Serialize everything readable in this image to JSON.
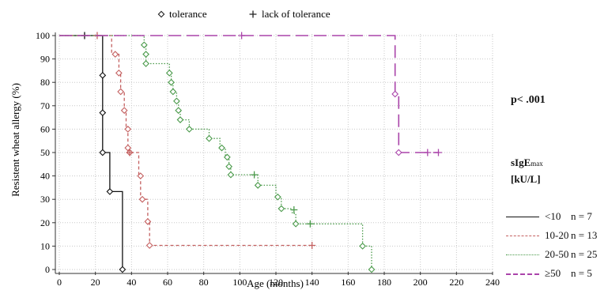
{
  "chart_data": {
    "type": "line",
    "subtype": "kaplan-meier-step",
    "title": "",
    "xlabel": "Age (months)",
    "ylabel": "Resistent wheat allergy (%)",
    "xlim": [
      0,
      240
    ],
    "ylim": [
      0,
      100
    ],
    "xticks": [
      "0",
      "20",
      "40",
      "60",
      "80",
      "100",
      "120",
      "140",
      "160",
      "180",
      "200",
      "220",
      "240"
    ],
    "yticks": [
      "0",
      "10",
      "20",
      "30",
      "40",
      "50",
      "60",
      "70",
      "80",
      "90",
      "100"
    ],
    "grid": true,
    "legend": {
      "position": "top",
      "entries": [
        {
          "marker": "diamond",
          "label": "tolerance"
        },
        {
          "marker": "plus",
          "label": "lack of tolerance"
        }
      ]
    },
    "annotation": "p< .001",
    "group_legend_title": "sIgE",
    "group_legend_title_sub": "max",
    "group_legend_unit": "[kU/L]",
    "series": [
      {
        "name": "<10",
        "n_label": "n = 7",
        "color": "#111111",
        "dash": "solid",
        "steps": [
          [
            0,
            100
          ],
          [
            24,
            100
          ],
          [
            24,
            83
          ],
          [
            24,
            67
          ],
          [
            24,
            50
          ],
          [
            28,
            50
          ],
          [
            28,
            33.3
          ],
          [
            35,
            33.3
          ],
          [
            35,
            0
          ]
        ],
        "tolerance": [
          [
            24,
            83
          ],
          [
            24,
            67
          ],
          [
            24,
            50
          ],
          [
            28,
            33.3
          ],
          [
            35,
            0
          ]
        ],
        "censored": [
          [
            14,
            100
          ]
        ]
      },
      {
        "name": "10-20",
        "n_label": "n = 13",
        "color": "#c46060",
        "dash": "dashed",
        "steps": [
          [
            0,
            100
          ],
          [
            29,
            100
          ],
          [
            29,
            92
          ],
          [
            33,
            92
          ],
          [
            33,
            84
          ],
          [
            34,
            84
          ],
          [
            34,
            76
          ],
          [
            36,
            76
          ],
          [
            36,
            68
          ],
          [
            37,
            68
          ],
          [
            37,
            60
          ],
          [
            38,
            60
          ],
          [
            38,
            52
          ],
          [
            38,
            50
          ],
          [
            44,
            50
          ],
          [
            44,
            40
          ],
          [
            45,
            40
          ],
          [
            45,
            30
          ],
          [
            49,
            30
          ],
          [
            49,
            20.5
          ],
          [
            50,
            20.5
          ],
          [
            50,
            10.3
          ],
          [
            140,
            10.3
          ]
        ],
        "tolerance": [
          [
            31,
            92
          ],
          [
            33,
            84
          ],
          [
            34,
            76
          ],
          [
            36,
            68
          ],
          [
            38,
            60
          ],
          [
            38,
            52
          ],
          [
            39,
            50
          ],
          [
            45,
            40
          ],
          [
            46,
            30
          ],
          [
            49,
            20.5
          ],
          [
            50,
            10.3
          ]
        ],
        "censored": [
          [
            21,
            100
          ],
          [
            39,
            50
          ],
          [
            140,
            10.3
          ]
        ]
      },
      {
        "name": "20-50",
        "n_label": "n = 25",
        "color": "#4a9a4a",
        "dash": "dotted",
        "steps": [
          [
            0,
            100
          ],
          [
            47,
            100
          ],
          [
            47,
            96
          ],
          [
            48,
            96
          ],
          [
            48,
            92
          ],
          [
            48,
            88
          ],
          [
            61,
            88
          ],
          [
            61,
            84
          ],
          [
            62,
            84
          ],
          [
            62,
            80
          ],
          [
            63,
            80
          ],
          [
            63,
            76
          ],
          [
            65,
            76
          ],
          [
            65,
            72
          ],
          [
            66,
            72
          ],
          [
            66,
            68
          ],
          [
            67,
            68
          ],
          [
            67,
            64
          ],
          [
            72,
            64
          ],
          [
            72,
            60
          ],
          [
            83,
            60
          ],
          [
            83,
            56
          ],
          [
            89,
            56
          ],
          [
            89,
            52
          ],
          [
            92,
            52
          ],
          [
            92,
            48
          ],
          [
            94,
            48
          ],
          [
            94,
            44
          ],
          [
            95,
            44
          ],
          [
            95,
            40.5
          ],
          [
            110,
            40.5
          ],
          [
            110,
            36
          ],
          [
            120,
            36
          ],
          [
            120,
            31
          ],
          [
            123,
            31
          ],
          [
            123,
            26
          ],
          [
            129,
            26
          ],
          [
            129,
            24
          ],
          [
            131,
            24
          ],
          [
            131,
            19.5
          ],
          [
            168,
            19.5
          ],
          [
            168,
            10
          ],
          [
            173,
            10
          ],
          [
            173,
            0
          ]
        ],
        "tolerance": [
          [
            47,
            96
          ],
          [
            48,
            92
          ],
          [
            48,
            88
          ],
          [
            61,
            84
          ],
          [
            62,
            80
          ],
          [
            63,
            76
          ],
          [
            65,
            72
          ],
          [
            66,
            68
          ],
          [
            67,
            64
          ],
          [
            72,
            60
          ],
          [
            83,
            56
          ],
          [
            90,
            52
          ],
          [
            93,
            48
          ],
          [
            94,
            44
          ],
          [
            95,
            40.5
          ],
          [
            110,
            36
          ],
          [
            121,
            31
          ],
          [
            123,
            26
          ],
          [
            131,
            19.5
          ],
          [
            168,
            10
          ],
          [
            173,
            0
          ]
        ],
        "censored": [
          [
            108,
            40.5
          ],
          [
            130,
            25.5
          ],
          [
            139,
            19.5
          ]
        ]
      },
      {
        "name": "≥50",
        "n_label": "n = 5",
        "color": "#aa44aa",
        "dash": "longdash",
        "steps": [
          [
            0,
            100
          ],
          [
            186,
            100
          ],
          [
            186,
            75
          ],
          [
            188,
            75
          ],
          [
            188,
            50
          ],
          [
            210,
            50
          ]
        ],
        "tolerance": [
          [
            186,
            75
          ],
          [
            188,
            50
          ]
        ],
        "censored": [
          [
            101,
            100
          ],
          [
            204,
            50
          ],
          [
            210,
            50
          ]
        ]
      }
    ]
  }
}
